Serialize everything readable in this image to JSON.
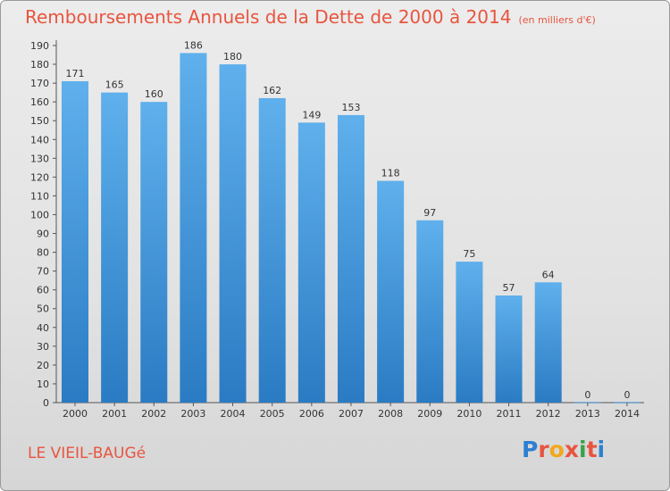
{
  "title": "Remboursements Annuels de la Dette de 2000 à 2014",
  "unit": "(en milliers d'€)",
  "commune": "LE VIEIL-BAUGé",
  "logo": "Proxiti",
  "colors": {
    "title": "#e8553f",
    "bar_top": "#5fb0ec",
    "bar_bottom": "#2a7bc3",
    "logo_letters": [
      "#2d7fd1",
      "#e8553f",
      "#f2a81d",
      "#e8553f",
      "#3aa14b",
      "#e8553f",
      "#2d7fd1"
    ]
  },
  "chart_data": {
    "type": "bar",
    "categories": [
      "2000",
      "2001",
      "2002",
      "2003",
      "2004",
      "2005",
      "2006",
      "2007",
      "2008",
      "2009",
      "2010",
      "2011",
      "2012",
      "2013",
      "2014"
    ],
    "values": [
      171,
      165,
      160,
      186,
      180,
      162,
      149,
      153,
      118,
      97,
      75,
      57,
      64,
      0,
      0
    ],
    "ylim": [
      0,
      190
    ],
    "yticks": [
      0,
      10,
      20,
      30,
      40,
      50,
      60,
      70,
      80,
      90,
      100,
      110,
      120,
      130,
      140,
      150,
      160,
      170,
      180,
      190
    ],
    "grid": false,
    "legend": "none"
  }
}
